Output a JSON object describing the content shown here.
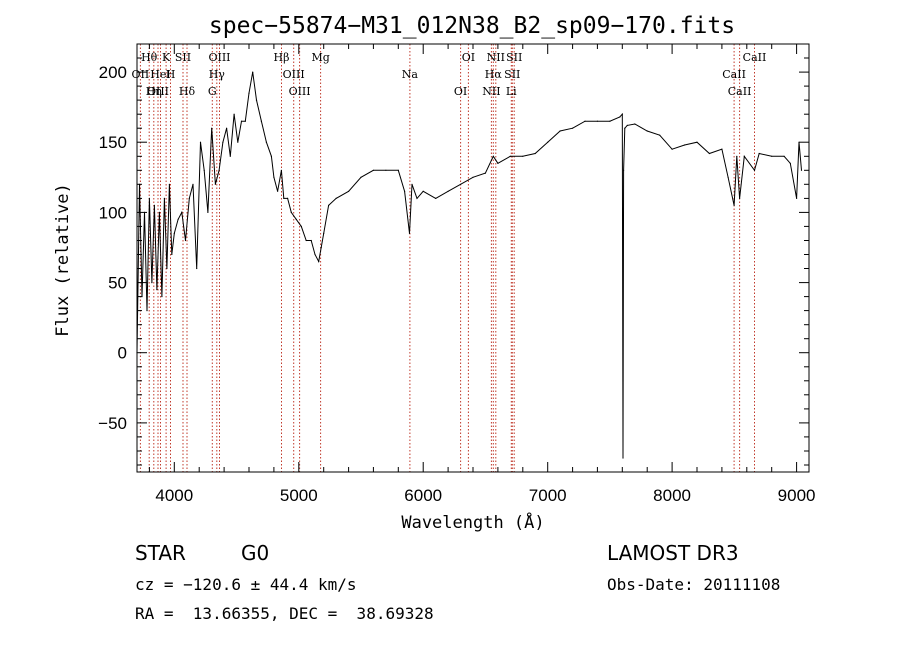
{
  "chart_data": {
    "type": "line",
    "title": "spec−55874−M31_012N38_B2_sp09−170.fits",
    "xlabel": "Wavelength (Å)",
    "ylabel": "Flux (relative)",
    "xlim": [
      3700,
      9100
    ],
    "ylim": [
      -85,
      220
    ],
    "xticks": [
      4000,
      5000,
      6000,
      7000,
      8000,
      9000
    ],
    "yticks": [
      -50,
      0,
      50,
      100,
      150,
      200
    ],
    "ytick_labels": [
      "−50",
      "0",
      "50",
      "100",
      "150",
      "200"
    ],
    "grid": false,
    "series": [
      {
        "name": "flux",
        "x": [
          3700,
          3720,
          3740,
          3760,
          3780,
          3800,
          3820,
          3840,
          3860,
          3880,
          3900,
          3920,
          3940,
          3960,
          3980,
          4000,
          4030,
          4060,
          4090,
          4120,
          4150,
          4180,
          4210,
          4240,
          4270,
          4300,
          4330,
          4360,
          4390,
          4420,
          4450,
          4480,
          4510,
          4540,
          4570,
          4600,
          4630,
          4660,
          4700,
          4740,
          4780,
          4800,
          4830,
          4860,
          4880,
          4910,
          4940,
          4980,
          5020,
          5060,
          5100,
          5130,
          5160,
          5180,
          5200,
          5240,
          5300,
          5400,
          5500,
          5600,
          5700,
          5800,
          5850,
          5890,
          5910,
          5950,
          6000,
          6100,
          6200,
          6300,
          6400,
          6500,
          6563,
          6600,
          6700,
          6800,
          6900,
          7000,
          7100,
          7200,
          7300,
          7400,
          7500,
          7580,
          7600,
          7605,
          7610,
          7620,
          7640,
          7700,
          7800,
          7900,
          8000,
          8100,
          8200,
          8300,
          8400,
          8450,
          8498,
          8520,
          8542,
          8580,
          8662,
          8700,
          8800,
          8900,
          8950,
          9000,
          9020,
          9040
        ],
        "y": [
          0,
          120,
          40,
          100,
          30,
          110,
          50,
          105,
          45,
          100,
          40,
          110,
          60,
          120,
          70,
          85,
          95,
          100,
          80,
          110,
          120,
          60,
          150,
          130,
          100,
          160,
          120,
          130,
          150,
          160,
          140,
          170,
          150,
          165,
          165,
          185,
          200,
          180,
          165,
          150,
          140,
          125,
          115,
          130,
          110,
          110,
          100,
          95,
          90,
          80,
          80,
          70,
          65,
          75,
          85,
          105,
          110,
          115,
          125,
          130,
          130,
          130,
          115,
          85,
          120,
          110,
          115,
          110,
          115,
          120,
          125,
          128,
          140,
          135,
          140,
          140,
          142,
          150,
          158,
          160,
          165,
          165,
          165,
          168,
          170,
          -75,
          130,
          160,
          162,
          163,
          158,
          155,
          145,
          148,
          150,
          142,
          145,
          125,
          105,
          140,
          110,
          140,
          130,
          142,
          140,
          140,
          135,
          110,
          150,
          130
        ]
      }
    ],
    "lines": [
      {
        "name": "Hθ",
        "wave": 3798
      },
      {
        "name": "OII",
        "wave": 3727
      },
      {
        "name": "OIII",
        "wave": 3869
      },
      {
        "name": "K",
        "wave": 3934
      },
      {
        "name": "HeI",
        "wave": 3889
      },
      {
        "name": "Hη",
        "wave": 3835
      },
      {
        "name": "SII",
        "wave": 4070
      },
      {
        "name": "H",
        "wave": 3969
      },
      {
        "name": "Hδ",
        "wave": 4102
      },
      {
        "name": "OIII",
        "wave": 4363
      },
      {
        "name": "Hγ",
        "wave": 4341
      },
      {
        "name": "G",
        "wave": 4305
      },
      {
        "name": "Hβ",
        "wave": 4861
      },
      {
        "name": "OIII",
        "wave": 4959
      },
      {
        "name": "OIII",
        "wave": 5007
      },
      {
        "name": "Mg",
        "wave": 5175
      },
      {
        "name": "Na",
        "wave": 5893
      },
      {
        "name": "OI",
        "wave": 6300
      },
      {
        "name": "OI",
        "wave": 6363
      },
      {
        "name": "Hα",
        "wave": 6563
      },
      {
        "name": "NII",
        "wave": 6548
      },
      {
        "name": "NII",
        "wave": 6583
      },
      {
        "name": "SII",
        "wave": 6716
      },
      {
        "name": "Li",
        "wave": 6708
      },
      {
        "name": "SII",
        "wave": 6731
      },
      {
        "name": "CaII",
        "wave": 8498
      },
      {
        "name": "CaII",
        "wave": 8542
      },
      {
        "name": "CaII",
        "wave": 8662
      }
    ]
  },
  "info": {
    "class": "STAR",
    "subclass": "G0",
    "survey": "LAMOST DR3",
    "cz": "cz = −120.6 ± 44.4 km/s",
    "obs_date": "Obs-Date: 20111108",
    "coords": "RA =  13.66355, DEC =  38.69328"
  }
}
